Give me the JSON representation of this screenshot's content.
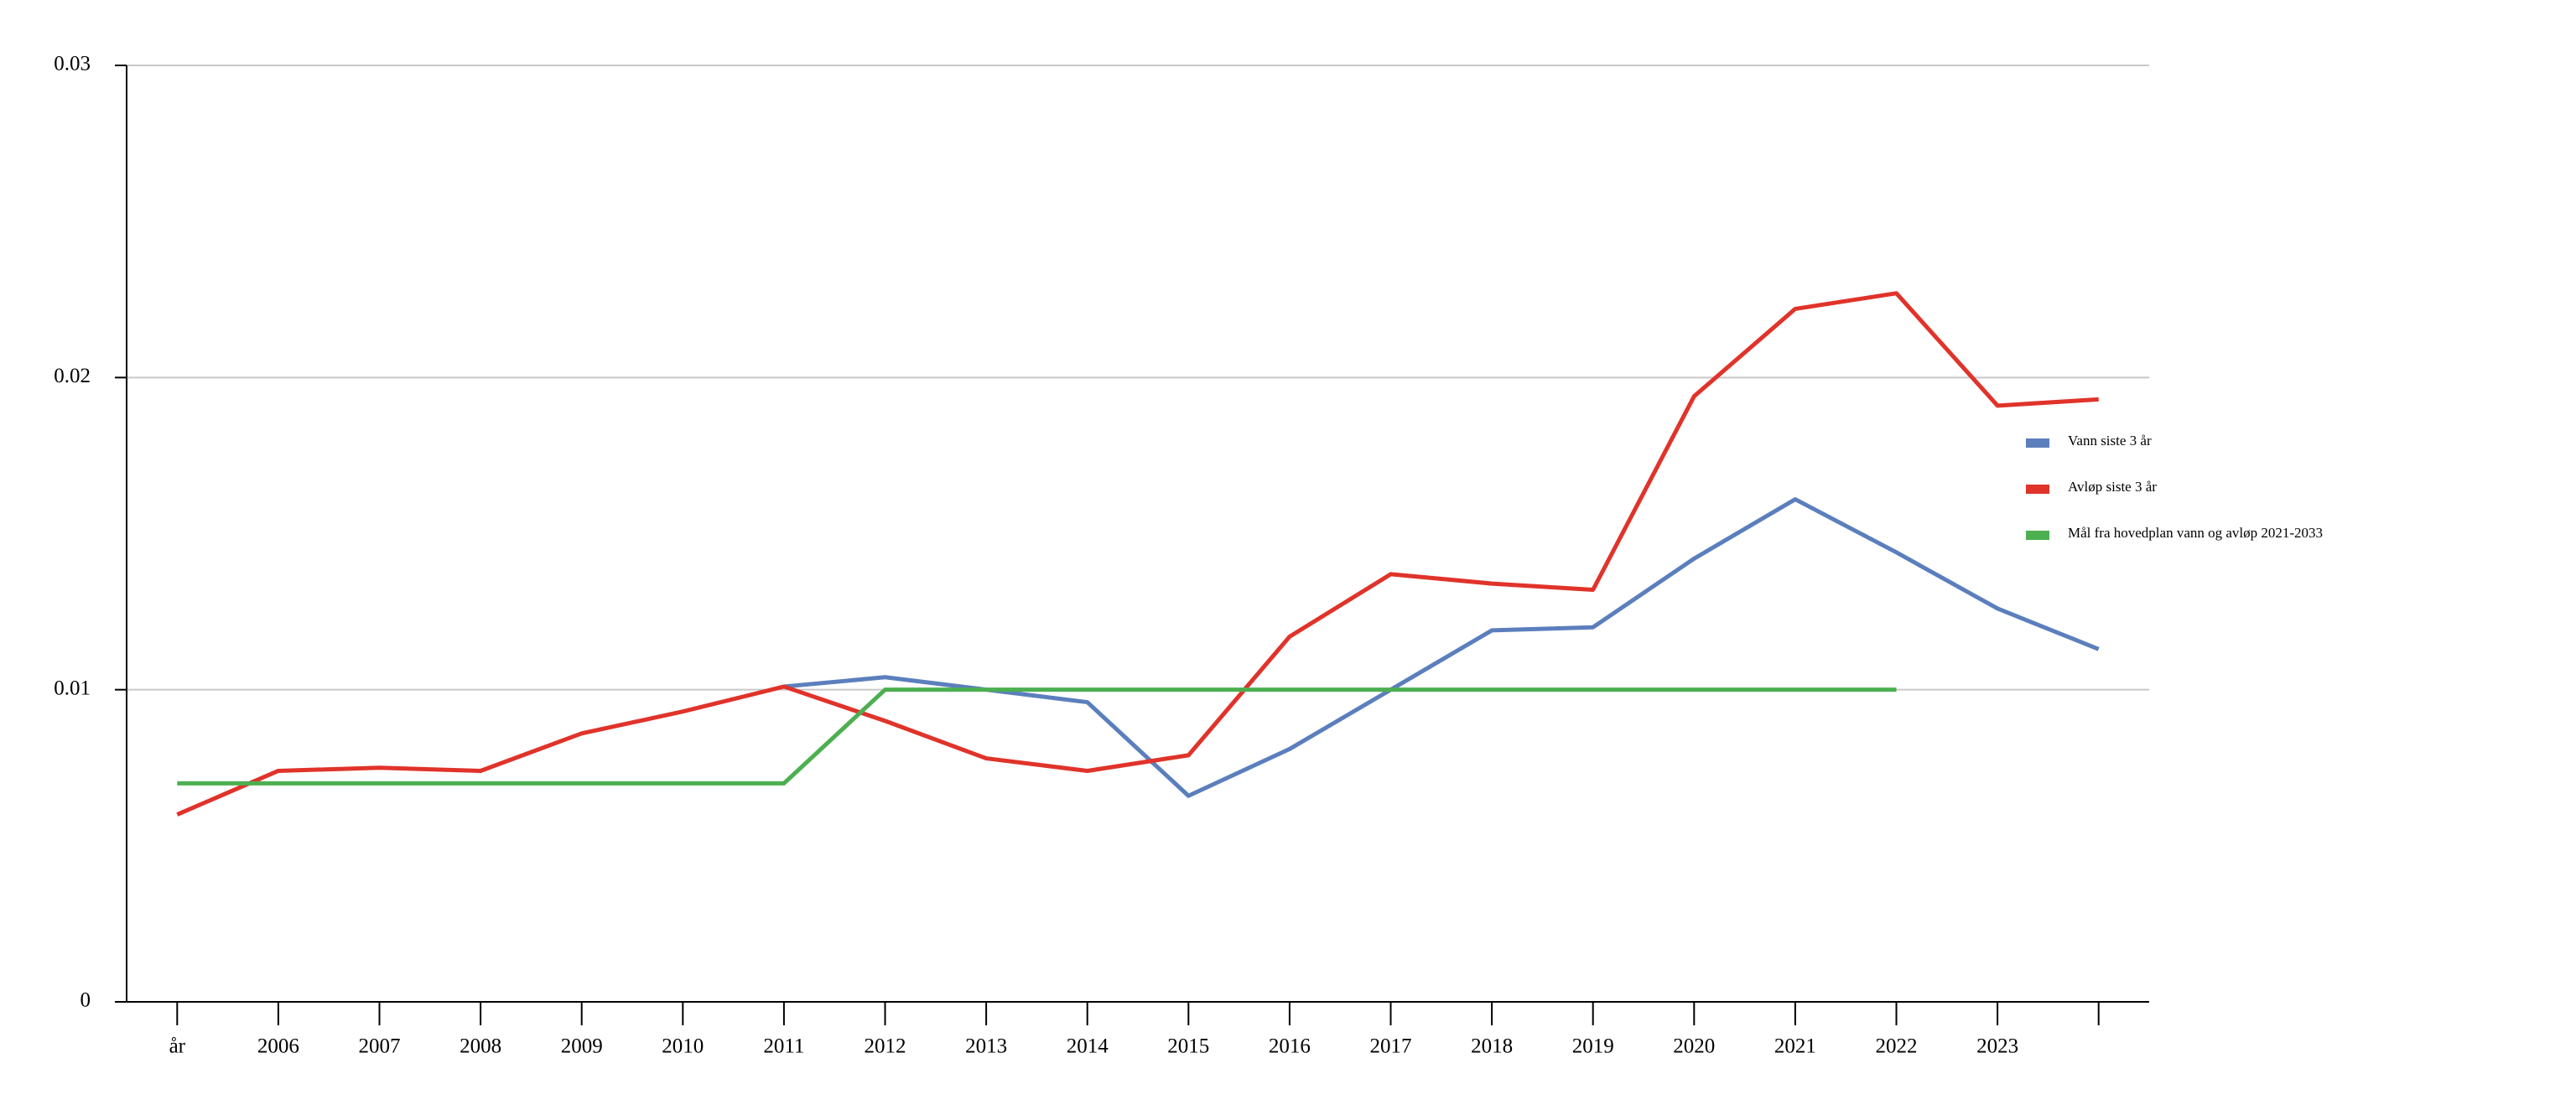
{
  "chart_data": {
    "type": "line",
    "categories": [
      "år",
      "2006",
      "2007",
      "2008",
      "2009",
      "2010",
      "2011",
      "2012",
      "2013",
      "2014",
      "2015",
      "2016",
      "2017",
      "2018",
      "2019",
      "2020",
      "2021",
      "2022",
      "2023",
      null
    ],
    "series": [
      {
        "name": "Vann siste 3 år",
        "color": "#5b7fbd",
        "values": [
          null,
          null,
          null,
          null,
          null,
          null,
          0.0101,
          0.0104,
          0.01,
          0.0096,
          0.0066,
          0.0081,
          0.01,
          0.0119,
          0.012,
          0.0142,
          0.0161,
          0.0144,
          0.0126,
          0.0113
        ]
      },
      {
        "name": "Avløp siste 3 år",
        "color": "#e0332a",
        "values": [
          0.006,
          0.0074,
          0.0075,
          0.0074,
          0.0086,
          0.0093,
          0.0101,
          0.009,
          0.0078,
          0.0074,
          0.0079,
          0.0117,
          0.0137,
          0.0134,
          0.0132,
          0.0194,
          0.0222,
          0.0227,
          0.0191,
          0.0193
        ]
      },
      {
        "name": "Mål fra hovedplan vann og avløp 2021-2033",
        "color": "#4caf50",
        "values": [
          0.007,
          0.007,
          0.007,
          0.007,
          0.007,
          0.007,
          0.007,
          0.01,
          0.01,
          0.01,
          0.01,
          0.01,
          0.01,
          0.01,
          0.01,
          0.01,
          0.01,
          0.01,
          null,
          null
        ]
      }
    ],
    "ylim": [
      0,
      0.03
    ],
    "yticks": [
      0,
      0.01,
      0.02,
      0.03
    ],
    "grid": true,
    "legend": "right"
  }
}
